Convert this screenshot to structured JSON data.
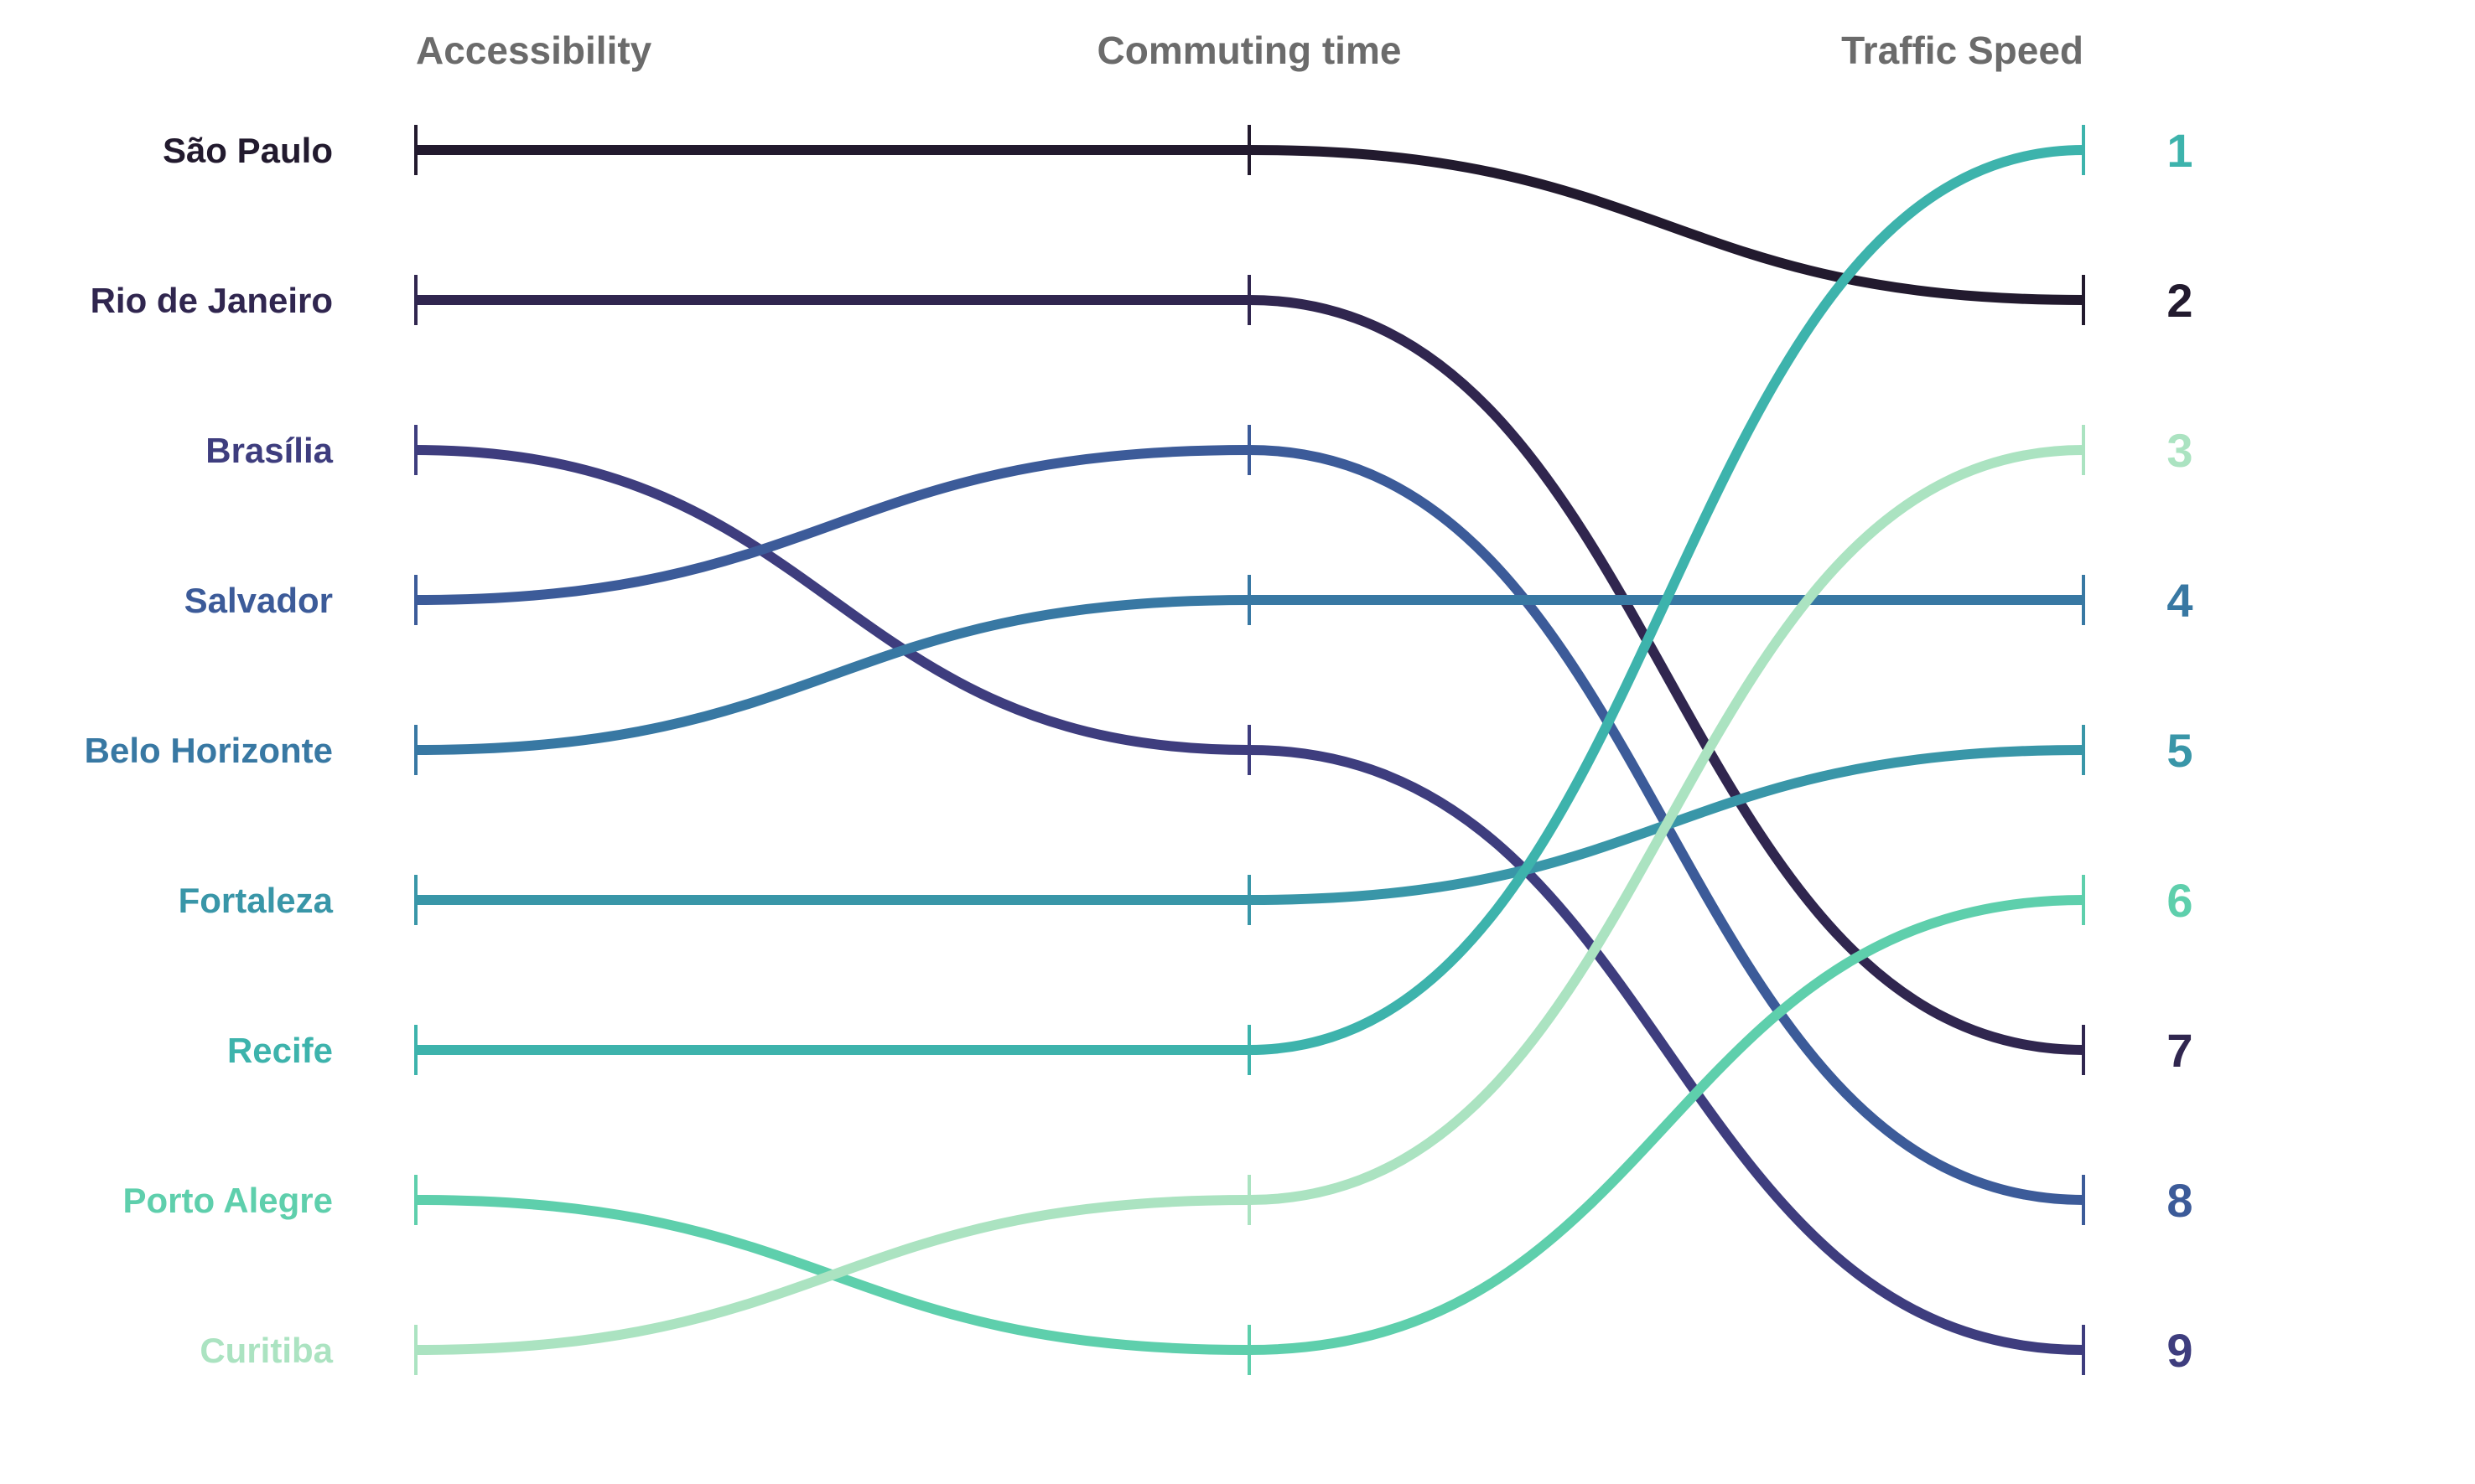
{
  "chart_data": {
    "type": "bump",
    "axes": [
      "Accessibility",
      "Commuting time",
      "Traffic Speed"
    ],
    "series": [
      {
        "name": "São Paulo",
        "ranks": [
          1,
          1,
          2
        ],
        "color": "#221a2e"
      },
      {
        "name": "Rio de Janeiro",
        "ranks": [
          2,
          2,
          7
        ],
        "color": "#30264f"
      },
      {
        "name": "Brasília",
        "ranks": [
          3,
          5,
          9
        ],
        "color": "#3e3d7e"
      },
      {
        "name": "Salvador",
        "ranks": [
          4,
          3,
          8
        ],
        "color": "#3c5b99"
      },
      {
        "name": "Belo Horizonte",
        "ranks": [
          5,
          4,
          4
        ],
        "color": "#3878a3"
      },
      {
        "name": "Fortaleza",
        "ranks": [
          6,
          6,
          5
        ],
        "color": "#3996a8"
      },
      {
        "name": "Recife",
        "ranks": [
          7,
          7,
          1
        ],
        "color": "#3db3ac"
      },
      {
        "name": "Porto Alegre",
        "ranks": [
          8,
          9,
          6
        ],
        "color": "#5ecfac"
      },
      {
        "name": "Curitiba",
        "ranks": [
          9,
          8,
          3
        ],
        "color": "#abe3c1"
      }
    ],
    "rank_labels": [
      "1",
      "2",
      "3",
      "4",
      "5",
      "6",
      "7",
      "8",
      "9"
    ],
    "rank_count": 9
  }
}
